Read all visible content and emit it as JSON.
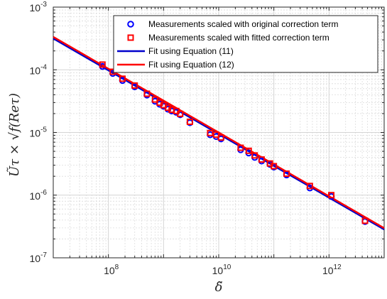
{
  "chart_data": {
    "type": "scatter",
    "x_scale": "log",
    "y_scale": "log",
    "xlim": [
      10000000,
      10000000000000.0
    ],
    "ylim": [
      1e-07,
      0.001
    ],
    "grid": true,
    "legend_position": "top-right",
    "xlabel": "δ̃",
    "ylabel": "Ũτ × √f(Reτ)",
    "xticks": [
      {
        "value": 100000000,
        "base": "10",
        "exp": "8"
      },
      {
        "value": 10000000000,
        "base": "10",
        "exp": "10"
      },
      {
        "value": 1000000000000,
        "base": "10",
        "exp": "12"
      }
    ],
    "yticks": [
      {
        "value": 0.001,
        "base": "10",
        "exp": "-3"
      },
      {
        "value": 0.0001,
        "base": "10",
        "exp": "-4"
      },
      {
        "value": 1e-05,
        "base": "10",
        "exp": "-5"
      },
      {
        "value": 1e-06,
        "base": "10",
        "exp": "-6"
      },
      {
        "value": 1e-07,
        "base": "10",
        "exp": "-7"
      }
    ],
    "series": [
      {
        "name": "Measurements scaled with original correction term",
        "kind": "scatter",
        "marker": "circle",
        "color": "#0000ff",
        "x": [
          78000000,
          120000000,
          180000000,
          300000000,
          500000000,
          700000000,
          850000000,
          1000000000,
          1200000000,
          1400000000,
          1700000000,
          2000000000,
          3000000000,
          7000000000,
          9000000000,
          11000000000,
          25000000000,
          35000000000,
          45000000000,
          60000000000,
          85000000000,
          100000000000,
          170000000000,
          450000000000,
          1100000000000,
          4500000000000
        ],
        "y": [
          0.000113,
          8.75e-05,
          6.75e-05,
          5.35e-05,
          3.95e-05,
          3.15e-05,
          2.82e-05,
          2.62e-05,
          2.35e-05,
          2.2e-05,
          2.1e-05,
          1.92e-05,
          1.43e-05,
          9.2e-06,
          8.6e-06,
          7.9e-06,
          5.3e-06,
          4.7e-06,
          4e-06,
          3.5e-06,
          3.1e-06,
          2.8e-06,
          2.1e-06,
          1.3e-06,
          9.5e-07,
          3.8e-07
        ]
      },
      {
        "name": "Measurements scaled with fitted correction term",
        "kind": "scatter",
        "marker": "square",
        "color": "#ff0000",
        "x": [
          78000000,
          120000000,
          180000000,
          300000000,
          500000000,
          700000000,
          850000000,
          1000000000,
          1200000000,
          1400000000,
          1700000000,
          2000000000,
          3000000000,
          7000000000,
          9000000000,
          11000000000,
          25000000000,
          35000000000,
          45000000000,
          60000000000,
          85000000000,
          100000000000,
          170000000000,
          450000000000,
          1100000000000,
          4500000000000
        ],
        "y": [
          0.000121,
          9.3e-05,
          7.2e-05,
          5.6e-05,
          4.15e-05,
          3.35e-05,
          2.98e-05,
          2.72e-05,
          2.48e-05,
          2.3e-05,
          2.2e-05,
          1.98e-05,
          1.48e-05,
          9.8e-06,
          9.2e-06,
          8.3e-06,
          5.7e-06,
          5.1e-06,
          4.3e-06,
          3.7e-06,
          3.2e-06,
          2.9e-06,
          2.2e-06,
          1.4e-06,
          1e-06,
          3.9e-07
        ]
      },
      {
        "name": "Fit using Equation (11)",
        "kind": "line",
        "color": "#0000cc",
        "x": [
          10000000,
          10000000000000.0
        ],
        "y": [
          0.000315,
          2.83e-07
        ]
      },
      {
        "name": "Fit using Equation (12)",
        "kind": "line",
        "color": "#ff0000",
        "x": [
          10000000,
          10000000000000.0
        ],
        "y": [
          0.000335,
          2.98e-07
        ]
      }
    ]
  }
}
